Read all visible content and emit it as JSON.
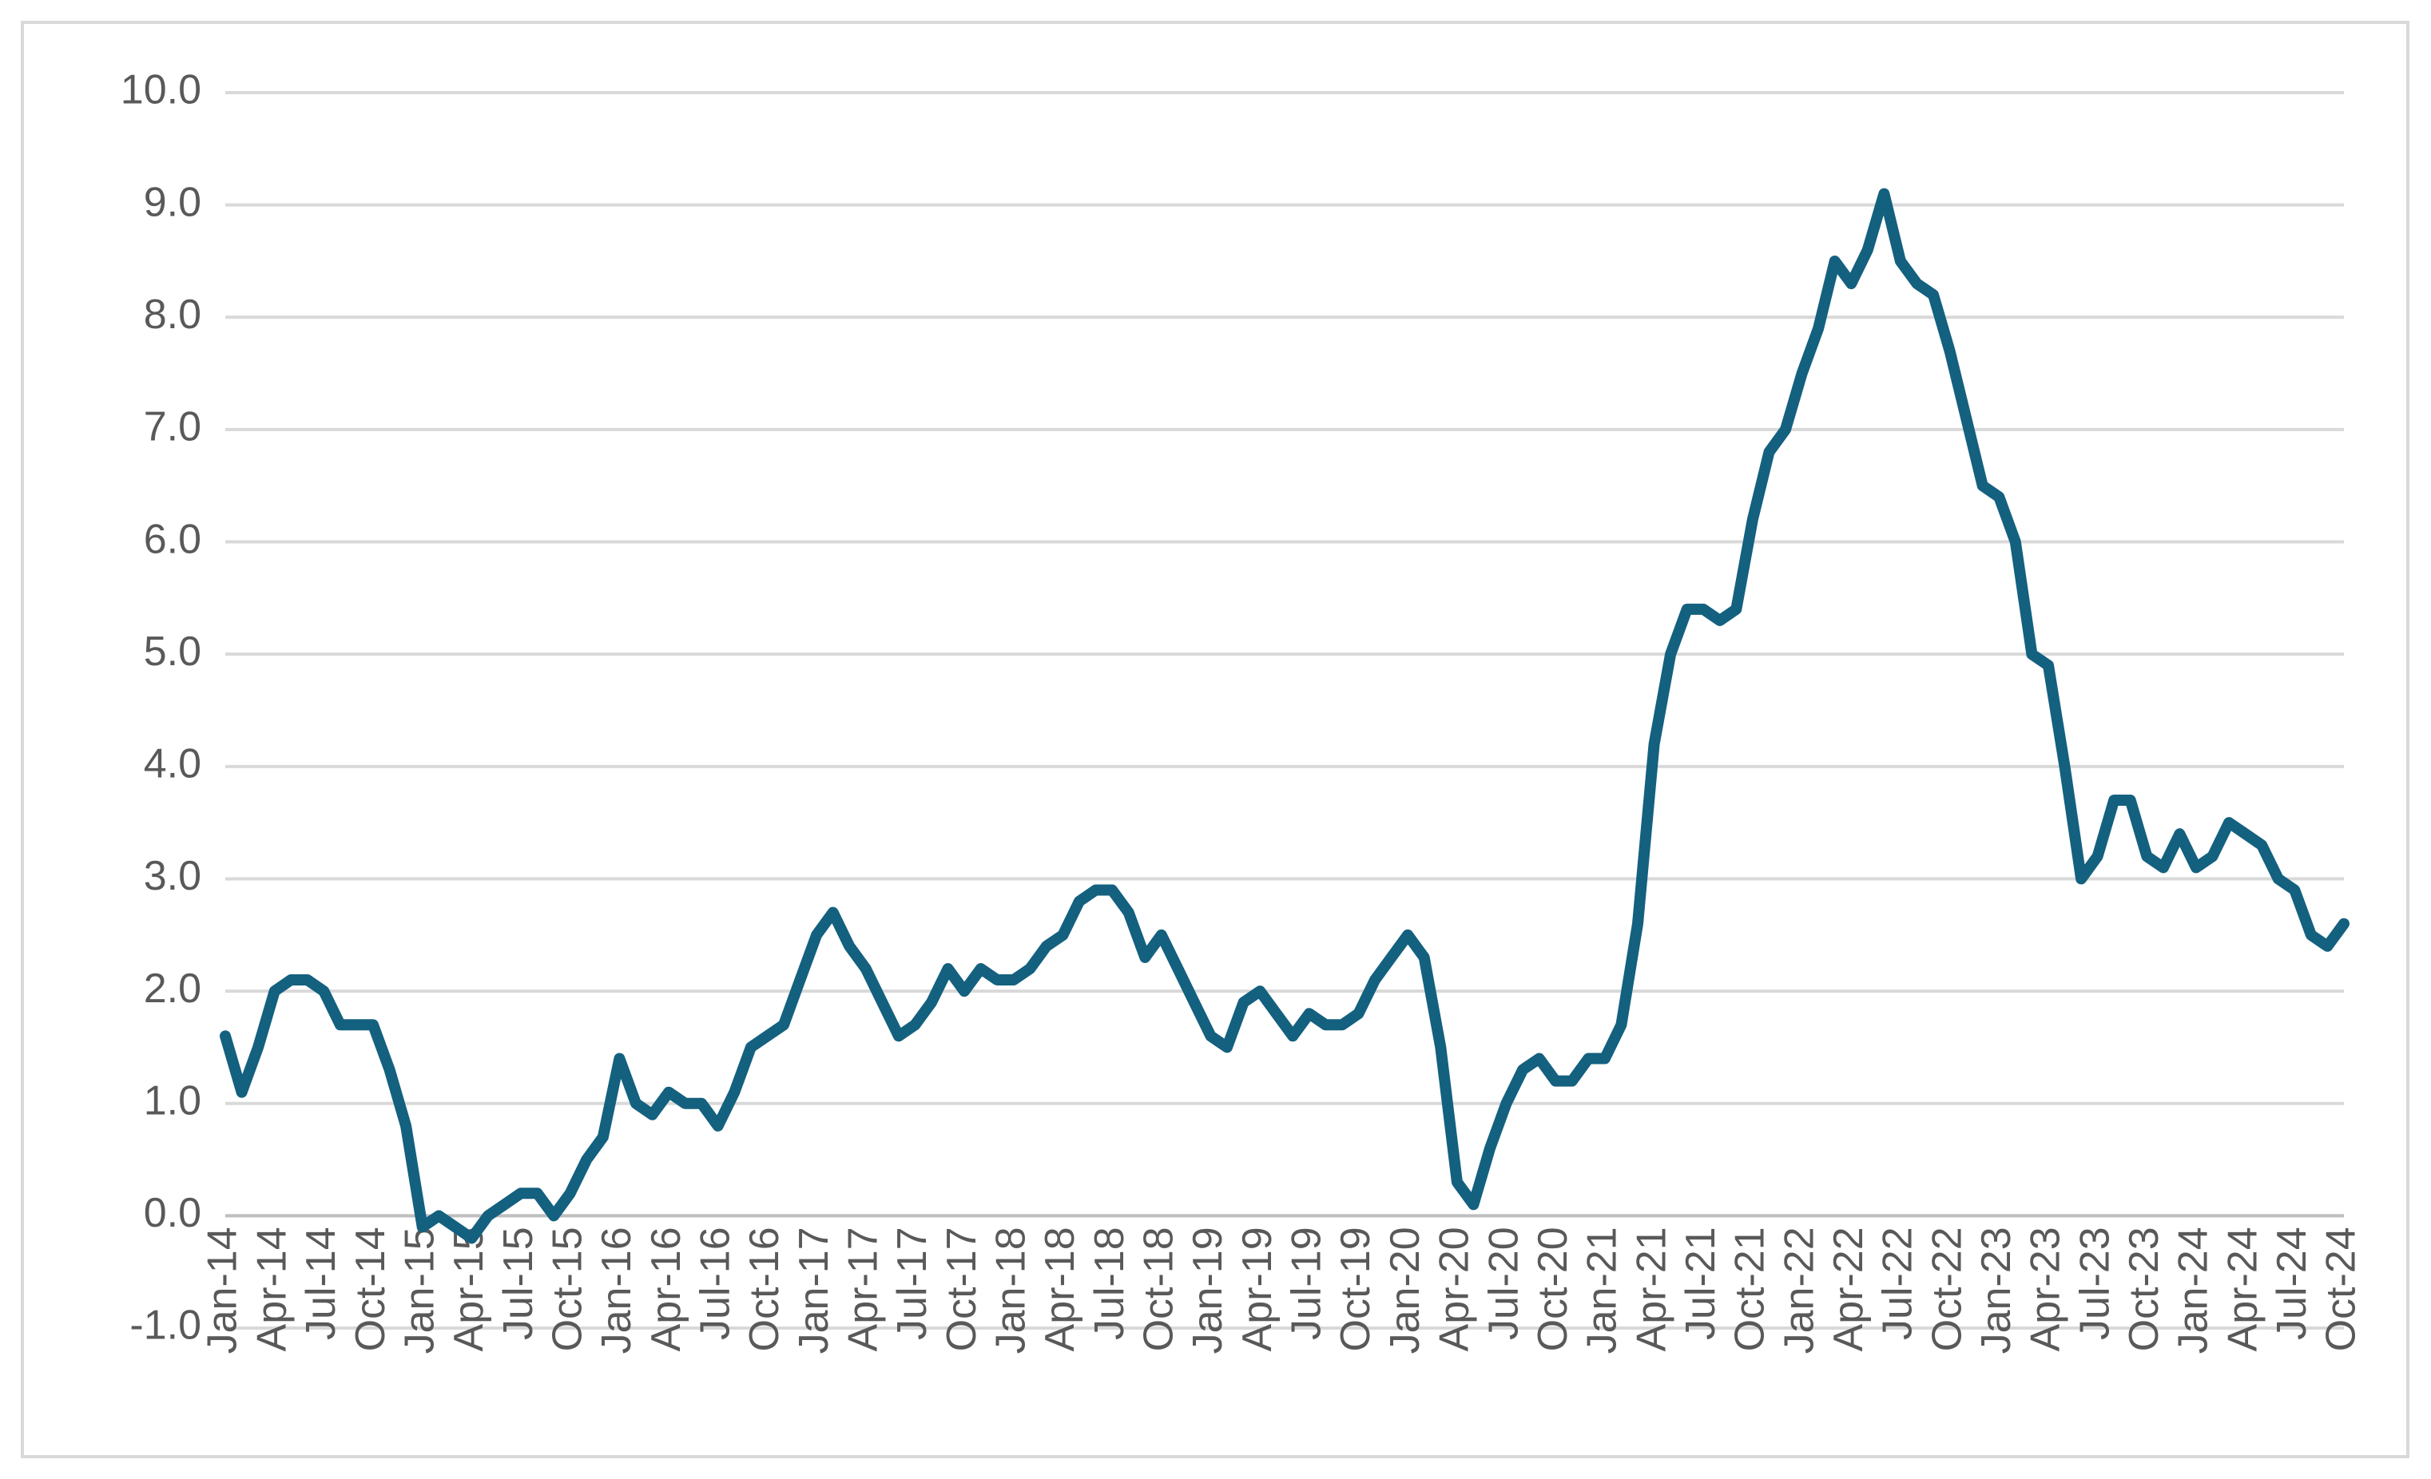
{
  "chart_data": {
    "type": "line",
    "categories": [
      "Jan-14",
      null,
      null,
      "Apr-14",
      null,
      null,
      "Jul-14",
      null,
      null,
      "Oct-14",
      null,
      null,
      "Jan-15",
      null,
      null,
      "Apr-15",
      null,
      null,
      "Jul-15",
      null,
      null,
      "Oct-15",
      null,
      null,
      "Jan-16",
      null,
      null,
      "Apr-16",
      null,
      null,
      "Jul-16",
      null,
      null,
      "Oct-16",
      null,
      null,
      "Jan-17",
      null,
      null,
      "Apr-17",
      null,
      null,
      "Jul-17",
      null,
      null,
      "Oct-17",
      null,
      null,
      "Jan-18",
      null,
      null,
      "Apr-18",
      null,
      null,
      "Jul-18",
      null,
      null,
      "Oct-18",
      null,
      null,
      "Jan-19",
      null,
      null,
      "Apr-19",
      null,
      null,
      "Jul-19",
      null,
      null,
      "Oct-19",
      null,
      null,
      "Jan-20",
      null,
      null,
      "Apr-20",
      null,
      null,
      "Jul-20",
      null,
      null,
      "Oct-20",
      null,
      null,
      "Jan-21",
      null,
      null,
      "Apr-21",
      null,
      null,
      "Jul-21",
      null,
      null,
      "Oct-21",
      null,
      null,
      "Jan-22",
      null,
      null,
      "Apr-22",
      null,
      null,
      "Jul-22",
      null,
      null,
      "Oct-22",
      null,
      null,
      "Jan-23",
      null,
      null,
      "Apr-23",
      null,
      null,
      "Jul-23",
      null,
      null,
      "Oct-23",
      null,
      null,
      "Jan-24",
      null,
      null,
      "Apr-24",
      null,
      null,
      "Jul-24",
      null,
      null,
      "Oct-24"
    ],
    "values": [
      1.6,
      1.1,
      1.5,
      2.0,
      2.1,
      2.1,
      2.0,
      1.7,
      1.7,
      1.7,
      1.3,
      0.8,
      -0.1,
      0.0,
      -0.1,
      -0.2,
      0.0,
      0.1,
      0.2,
      0.2,
      0.0,
      0.2,
      0.5,
      0.7,
      1.4,
      1.0,
      0.9,
      1.1,
      1.0,
      1.0,
      0.8,
      1.1,
      1.5,
      1.6,
      1.7,
      2.1,
      2.5,
      2.7,
      2.4,
      2.2,
      1.9,
      1.6,
      1.7,
      1.9,
      2.2,
      2.0,
      2.2,
      2.1,
      2.1,
      2.2,
      2.4,
      2.5,
      2.8,
      2.9,
      2.9,
      2.7,
      2.3,
      2.5,
      2.2,
      1.9,
      1.6,
      1.5,
      1.9,
      2.0,
      1.8,
      1.6,
      1.8,
      1.7,
      1.7,
      1.8,
      2.1,
      2.3,
      2.5,
      2.3,
      1.5,
      0.3,
      0.1,
      0.6,
      1.0,
      1.3,
      1.4,
      1.2,
      1.2,
      1.4,
      1.4,
      1.7,
      2.6,
      4.2,
      5.0,
      5.4,
      5.4,
      5.3,
      5.4,
      6.2,
      6.8,
      7.0,
      7.5,
      7.9,
      8.5,
      8.3,
      8.6,
      9.1,
      8.5,
      8.3,
      8.2,
      7.7,
      7.1,
      6.5,
      6.4,
      6.0,
      5.0,
      4.9,
      4.0,
      3.0,
      3.2,
      3.7,
      3.7,
      3.2,
      3.1,
      3.4,
      3.1,
      3.2,
      3.5,
      3.4,
      3.3,
      3.0,
      2.9,
      2.5,
      2.4,
      2.6
    ],
    "color": "#14607f",
    "ylim": [
      -1,
      10
    ],
    "yticks": [
      {
        "value": -1,
        "label": "-1.0"
      },
      {
        "value": 0,
        "label": "0.0"
      },
      {
        "value": 1,
        "label": "1.0"
      },
      {
        "value": 2,
        "label": "2.0"
      },
      {
        "value": 3,
        "label": "3.0"
      },
      {
        "value": 4,
        "label": "4.0"
      },
      {
        "value": 5,
        "label": "5.0"
      },
      {
        "value": 6,
        "label": "6.0"
      },
      {
        "value": 7,
        "label": "7.0"
      },
      {
        "value": 8,
        "label": "8.0"
      },
      {
        "value": 9,
        "label": "9.0"
      },
      {
        "value": 10,
        "label": "10.0"
      }
    ],
    "grid": true
  }
}
